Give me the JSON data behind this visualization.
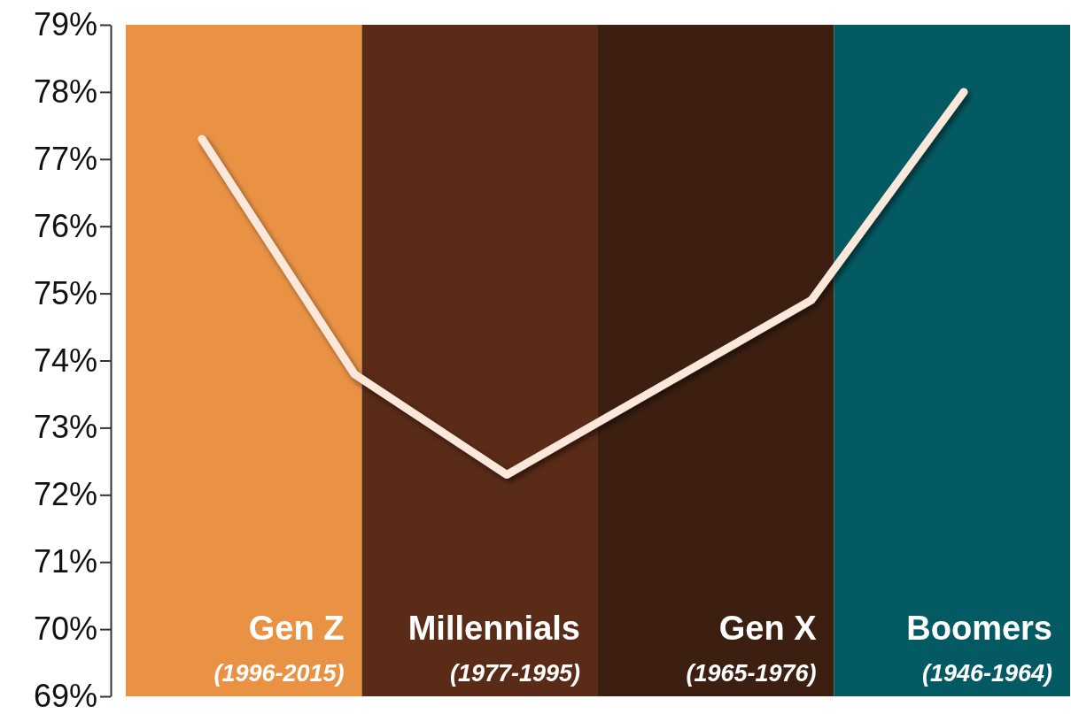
{
  "chart_data": {
    "type": "line",
    "categories": [
      null,
      null,
      null,
      null,
      null,
      null
    ],
    "series": [
      {
        "color": "#fbe8da",
        "values": [
          77.3,
          73.8,
          72.3,
          73.6,
          74.9,
          78.0
        ]
      }
    ],
    "ylim": [
      69,
      79
    ],
    "yticks": [
      {
        "value": 69,
        "label": "69%"
      },
      {
        "value": 70,
        "label": "70%"
      },
      {
        "value": 71,
        "label": "71%"
      },
      {
        "value": 72,
        "label": "72%"
      },
      {
        "value": 73,
        "label": "73%"
      },
      {
        "value": 74,
        "label": "74%"
      },
      {
        "value": 75,
        "label": "75%"
      },
      {
        "value": 76,
        "label": "76%"
      },
      {
        "value": 77,
        "label": "77%"
      },
      {
        "value": 78,
        "label": "78%"
      },
      {
        "value": 79,
        "label": "79%"
      }
    ],
    "tick_labels": "y",
    "marker": "none",
    "line_style": "solid",
    "annotations": [
      "Gen Z",
      "(1996-2015)",
      "Millennials",
      "(1977-1995)",
      "Gen X",
      "(1965-1976)",
      "Boomers",
      "(1946-1964)"
    ]
  }
}
